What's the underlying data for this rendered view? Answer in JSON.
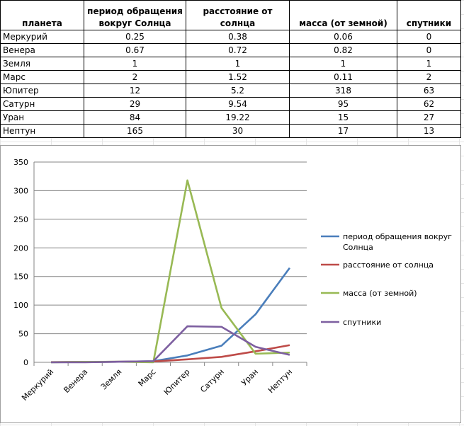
{
  "table": {
    "headers": [
      "планета",
      "период обращения вокруг Солнца",
      "расстояние от солнца",
      "масса (от земной)",
      "спутники"
    ],
    "rows": [
      [
        "Меркурий",
        "0.25",
        "0.38",
        "0.06",
        "0"
      ],
      [
        "Венера",
        "0.67",
        "0.72",
        "0.82",
        "0"
      ],
      [
        "Земля",
        "1",
        "1",
        "1",
        "1"
      ],
      [
        "Марс",
        "2",
        "1.52",
        "0.11",
        "2"
      ],
      [
        "Юпитер",
        "12",
        "5.2",
        "318",
        "63"
      ],
      [
        "Сатурн",
        "29",
        "9.54",
        "95",
        "62"
      ],
      [
        "Уран",
        "84",
        "19.22",
        "15",
        "27"
      ],
      [
        "Нептун",
        "165",
        "30",
        "17",
        "13"
      ]
    ]
  },
  "chart_data": {
    "type": "line",
    "categories": [
      "Меркурий",
      "Венера",
      "Земля",
      "Марс",
      "Юпитер",
      "Сатурн",
      "Уран",
      "Нептун"
    ],
    "series": [
      {
        "name": "период обращения вокруг Солнца",
        "color": "#4a7ebb",
        "values": [
          0.25,
          0.67,
          1,
          2,
          12,
          29,
          84,
          165
        ]
      },
      {
        "name": "расстояние от солнца",
        "color": "#be4b48",
        "values": [
          0.38,
          0.72,
          1,
          1.52,
          5.2,
          9.54,
          19.22,
          30
        ]
      },
      {
        "name": "масса (от земной)",
        "color": "#98b954",
        "values": [
          0.06,
          0.82,
          1,
          0.11,
          318,
          95,
          15,
          17
        ]
      },
      {
        "name": "спутники",
        "color": "#7d5fa0",
        "values": [
          0,
          0,
          1,
          2,
          63,
          62,
          27,
          13
        ]
      }
    ],
    "yticks": [
      "0",
      "50",
      "100",
      "150",
      "200",
      "250",
      "300",
      "350"
    ],
    "ylim": [
      0,
      350
    ],
    "title": "",
    "xlabel": "",
    "ylabel": "",
    "grid": true,
    "legend": "right"
  }
}
